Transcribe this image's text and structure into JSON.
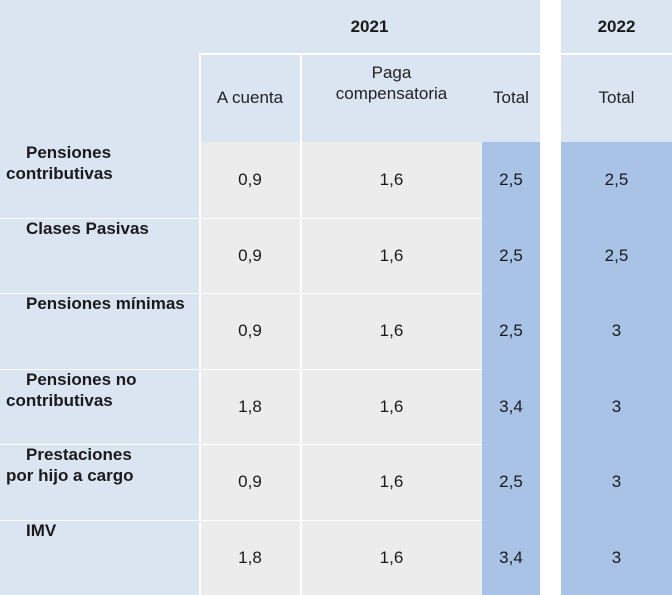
{
  "header": {
    "year_2021": "2021",
    "year_2022": "2022",
    "col_a_cuenta": "A cuenta",
    "col_paga_line1": "Paga",
    "col_paga_line2": "compensatoria",
    "col_total_2021": "Total",
    "col_total_2022": "Total"
  },
  "rows": [
    {
      "label_l1": "Pensiones",
      "label_l2": "contributivas",
      "a_cuenta": "0,9",
      "paga": "1,6",
      "total_2021": "2,5",
      "total_2022": "2,5"
    },
    {
      "label_l1": "Clases Pasivas",
      "label_l2": "",
      "a_cuenta": "0,9",
      "paga": "1,6",
      "total_2021": "2,5",
      "total_2022": "2,5"
    },
    {
      "label_l1": "Pensiones mínimas",
      "label_l2": "",
      "a_cuenta": "0,9",
      "paga": "1,6",
      "total_2021": "2,5",
      "total_2022": "3"
    },
    {
      "label_l1": "Pensiones no",
      "label_l2": "contributivas",
      "a_cuenta": "1,8",
      "paga": "1,6",
      "total_2021": "3,4",
      "total_2022": "3"
    },
    {
      "label_l1": "Prestaciones",
      "label_l2": "por hijo a cargo",
      "a_cuenta": "0,9",
      "paga": "1,6",
      "total_2021": "2,5",
      "total_2022": "3"
    },
    {
      "label_l1": "IMV",
      "label_l2": "",
      "a_cuenta": "1,8",
      "paga": "1,6",
      "total_2021": "3,4",
      "total_2022": "3"
    }
  ]
}
